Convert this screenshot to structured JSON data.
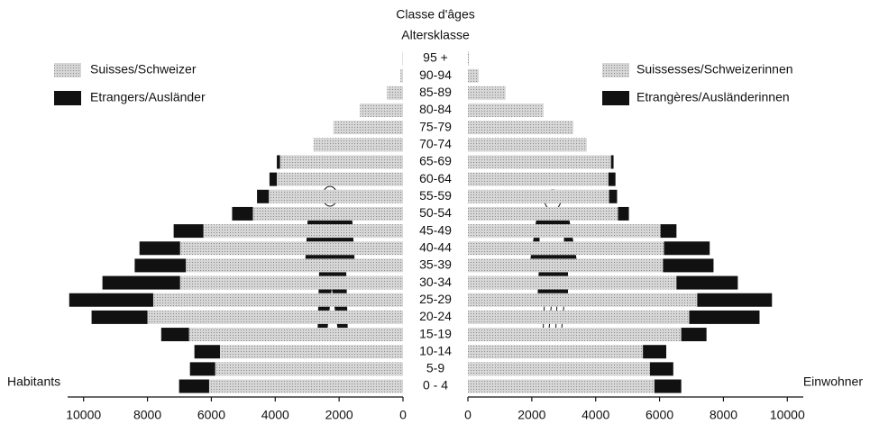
{
  "chart_data": {
    "type": "pyramid",
    "title": "Classe d'âges",
    "subtitle": "Altersklasse",
    "left_label": "Habitants",
    "right_label": "Einwohner",
    "categories": [
      "95 +",
      "90-94",
      "85-89",
      "80-84",
      "75-79",
      "70-74",
      "65-69",
      "60-64",
      "55-59",
      "50-54",
      "45-49",
      "40-44",
      "35-39",
      "30-34",
      "25-29",
      "20-24",
      "15-19",
      "10-14",
      "5-9",
      "0 - 4"
    ],
    "series": [
      {
        "name": "Suisses/Schweizer",
        "color": "#c8c8c8",
        "side": "left",
        "values": [
          20,
          80,
          500,
          1350,
          2180,
          2800,
          3850,
          3950,
          4200,
          4700,
          6250,
          6980,
          6800,
          6980,
          7820,
          8000,
          6700,
          5730,
          5880,
          6070
        ]
      },
      {
        "name": "Etrangers/Ausländer",
        "color": "#111111",
        "side": "left",
        "values": [
          0,
          0,
          0,
          0,
          0,
          0,
          100,
          230,
          370,
          650,
          930,
          1270,
          1600,
          2430,
          2630,
          1750,
          870,
          800,
          790,
          940
        ]
      },
      {
        "name": "Suissesses/Schweizerinnen",
        "color": "#c8c8c8",
        "side": "right",
        "values": [
          30,
          340,
          1180,
          2370,
          3300,
          3720,
          4480,
          4400,
          4420,
          4700,
          6030,
          6140,
          6110,
          6530,
          7180,
          6930,
          6680,
          5480,
          5700,
          5840
        ]
      },
      {
        "name": "Etrangères/Ausländerinnen",
        "color": "#111111",
        "side": "right",
        "values": [
          0,
          0,
          0,
          0,
          0,
          0,
          80,
          220,
          250,
          340,
          500,
          1430,
          1580,
          1920,
          2340,
          2200,
          790,
          730,
          730,
          840
        ]
      }
    ],
    "xlim": [
      0,
      10500
    ],
    "xticks": [
      0,
      2000,
      4000,
      6000,
      8000,
      10000
    ]
  }
}
